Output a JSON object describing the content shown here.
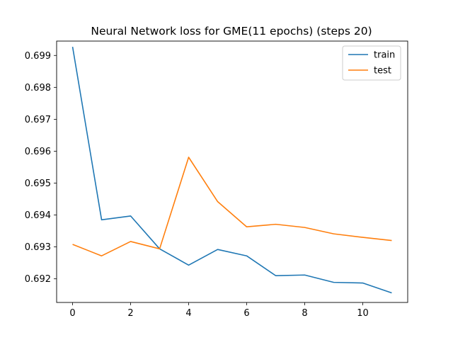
{
  "chart_data": {
    "type": "line",
    "title": "Neural Network loss for GME(11 epochs) (steps 20)",
    "xlabel": "",
    "ylabel": "",
    "x": [
      0,
      1,
      2,
      3,
      4,
      5,
      6,
      7,
      8,
      9,
      10,
      11
    ],
    "xlim": [
      -0.55,
      11.55
    ],
    "ylim": [
      0.69126,
      0.69945
    ],
    "xticks": [
      0,
      2,
      4,
      6,
      8,
      10
    ],
    "yticks": [
      0.692,
      0.693,
      0.694,
      0.695,
      0.696,
      0.697,
      0.698,
      0.699
    ],
    "ytick_labels": [
      "0.692",
      "0.693",
      "0.694",
      "0.695",
      "0.696",
      "0.697",
      "0.698",
      "0.699"
    ],
    "grid": false,
    "legend_position": "top-right",
    "series": [
      {
        "name": "train",
        "color": "#1f77b4",
        "values": [
          0.69927,
          0.69385,
          0.69397,
          0.69294,
          0.69243,
          0.69292,
          0.69272,
          0.6921,
          0.69212,
          0.69189,
          0.69187,
          0.69156
        ]
      },
      {
        "name": "test",
        "color": "#ff7f0e",
        "values": [
          0.69308,
          0.69272,
          0.69317,
          0.69294,
          0.69581,
          0.69442,
          0.69363,
          0.69371,
          0.69361,
          0.69341,
          0.6933,
          0.6932
        ]
      }
    ]
  }
}
